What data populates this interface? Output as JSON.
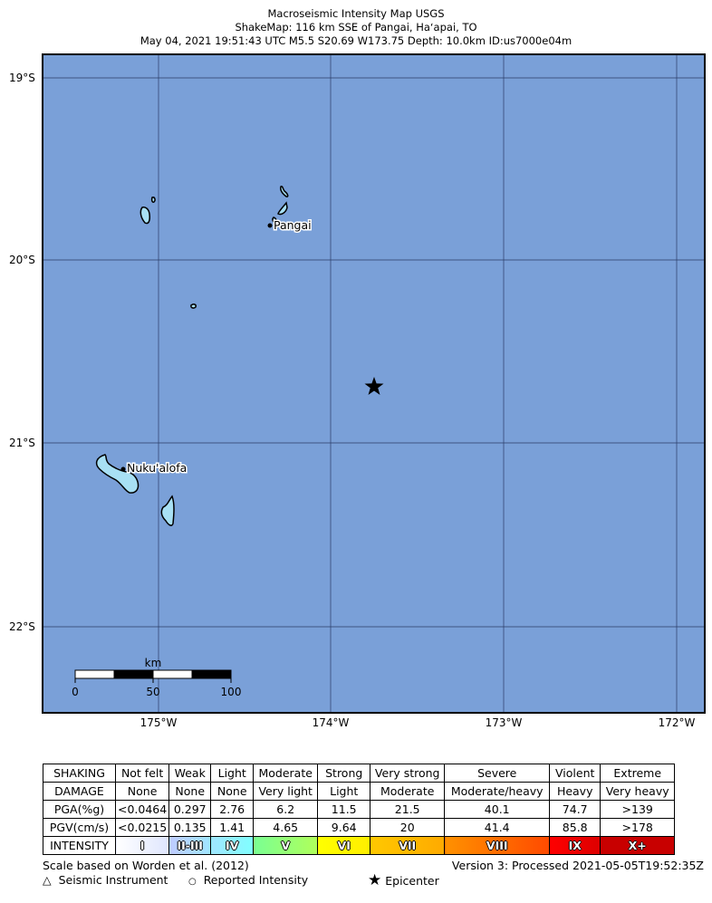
{
  "title": {
    "line1": "Macroseismic Intensity Map USGS",
    "line2": "ShakeMap: 116 km SSE of Pangai, Haʻapai, TO",
    "line3": "May 04, 2021 19:51:43 UTC M5.5 S20.69 W173.75 Depth: 10.0km ID:us7000e04m"
  },
  "map": {
    "ocean_color": "#7aa0d8",
    "land_color": "#a8e0f4",
    "lat_labels": [
      "19°S",
      "20°S",
      "21°S",
      "22°S"
    ],
    "lon_labels": [
      "175°W",
      "174°W",
      "173°W",
      "172°W"
    ],
    "cities": [
      {
        "name": "Pangai"
      },
      {
        "name": "Nuku'alofa"
      }
    ],
    "epicenter": {
      "lat": -20.69,
      "lon": -173.75,
      "icon": "star-icon"
    },
    "scale_bar": {
      "unit": "km",
      "labels": [
        "0",
        "50",
        "100"
      ]
    }
  },
  "legend_table": {
    "rows": [
      {
        "header": "SHAKING",
        "cells": [
          "Not felt",
          "Weak",
          "Light",
          "Moderate",
          "Strong",
          "Very strong",
          "Severe",
          "Violent",
          "Extreme"
        ]
      },
      {
        "header": "DAMAGE",
        "cells": [
          "None",
          "None",
          "None",
          "Very light",
          "Light",
          "Moderate",
          "Moderate/heavy",
          "Heavy",
          "Very heavy"
        ]
      },
      {
        "header": "PGA(%g)",
        "cells": [
          "<0.0464",
          "0.297",
          "2.76",
          "6.2",
          "11.5",
          "21.5",
          "40.1",
          "74.7",
          ">139"
        ]
      },
      {
        "header": "PGV(cm/s)",
        "cells": [
          "<0.0215",
          "0.135",
          "1.41",
          "4.65",
          "9.64",
          "20",
          "41.4",
          "85.8",
          ">178"
        ]
      }
    ],
    "intensity": {
      "header": "INTENSITY",
      "cells": [
        "I",
        "II-III",
        "IV",
        "V",
        "VI",
        "VII",
        "VIII",
        "IX",
        "X+"
      ],
      "colors": [
        [
          "#ffffff",
          "#dfe6fe"
        ],
        [
          "#bfccff",
          "#a0e6ff"
        ],
        [
          "#a0e6ff",
          "#80ffff"
        ],
        [
          "#7aff93",
          "#b0ff5a"
        ],
        [
          "#ffff00",
          "#ffee00"
        ],
        [
          "#ffc800",
          "#ffaa00"
        ],
        [
          "#ff9100",
          "#ff4a00"
        ],
        [
          "#ff0000",
          "#dd0000"
        ],
        [
          "#c80000",
          "#c80000"
        ]
      ]
    }
  },
  "footer": {
    "scale_note": "Scale based on Worden et al. (2012)",
    "version": "Version 3: Processed 2021-05-05T19:52:35Z",
    "seismic_instrument": "Seismic Instrument",
    "reported_intensity": "Reported Intensity",
    "epicenter": "Epicenter"
  }
}
